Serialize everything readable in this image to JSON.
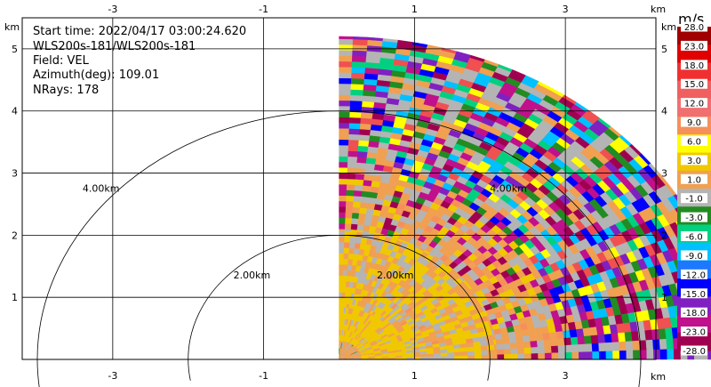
{
  "info_lines": [
    "Start time: 2022/04/17 03:00:24.620",
    "WLS200s-181/WLS200s-181",
    "Field: VEL",
    "Azimuth(deg): 109.01",
    "NRays: 178"
  ],
  "axis_unit": "km",
  "colorbar": {
    "unit": "m/s",
    "labels": [
      "28.0",
      "23.0",
      "18.0",
      "15.0",
      "12.0",
      "9.0",
      "6.0",
      "3.0",
      "1.0",
      "-1.0",
      "-3.0",
      "-6.0",
      "-9.0",
      "-12.0",
      "-15.0",
      "-18.0",
      "-23.0",
      "-28.0"
    ],
    "colors": [
      "#a00000",
      "#e00000",
      "#f03030",
      "#f06060",
      "#f07070",
      "#f5905a",
      "#ffff00",
      "#f0c800",
      "#f0a050",
      "#b4b4b4",
      "#228b22",
      "#00d080",
      "#00c0ff",
      "#1e78ff",
      "#0000ff",
      "#8020c0",
      "#c0108c",
      "#a00050"
    ]
  },
  "chart_data": {
    "type": "heatmap",
    "field": "VEL",
    "xlim": [
      -4.2,
      4.2
    ],
    "ylim": [
      0,
      5.5
    ],
    "x_ticks": [
      -3,
      -1,
      1,
      3
    ],
    "y_ticks": [
      1,
      2,
      3,
      4,
      5
    ],
    "max_range_km": 5.2,
    "range_rings": [
      {
        "radius_km": 2,
        "label": "2.00km"
      },
      {
        "radius_km": 4,
        "label": "4.00km"
      }
    ],
    "ring_label_positions": [
      {
        "label": "4.00km",
        "x": -3.4,
        "y": 2.7
      },
      {
        "label": "2.00km",
        "x": -1.4,
        "y": 1.3
      },
      {
        "label": "2.00km",
        "x": 0.5,
        "y": 1.3
      },
      {
        "label": "4.00km",
        "x": 2.0,
        "y": 2.7
      }
    ],
    "sector_deg": [
      0,
      90
    ],
    "layers": [
      {
        "r": [
          0.0,
          0.3
        ],
        "mix": [
          [
            0,
            "#f0a050"
          ],
          [
            0.75,
            "#b4b4b4"
          ],
          [
            0.95,
            "#228b22"
          ]
        ]
      },
      {
        "r": [
          0.3,
          0.9
        ],
        "mix": [
          [
            0,
            "#f0c800"
          ],
          [
            0.75,
            "#f0a050"
          ],
          [
            0.95,
            "#b4b4b4"
          ]
        ]
      },
      {
        "r": [
          0.9,
          2.1
        ],
        "mix": [
          [
            0,
            "#f0c800"
          ],
          [
            0.45,
            "#f0a050"
          ],
          [
            0.75,
            "#b4b4b4"
          ],
          [
            0.97,
            "#f5905a"
          ]
        ]
      },
      {
        "r": [
          2.1,
          3.0
        ],
        "mix": [
          [
            0,
            "#f0a050"
          ],
          [
            0.35,
            "#b4b4b4"
          ],
          [
            0.55,
            "#f0c800"
          ],
          [
            0.7,
            "#c0108c"
          ],
          [
            0.8,
            "#a00050"
          ],
          [
            0.88,
            "#f5905a"
          ],
          [
            0.95,
            "#228b22"
          ]
        ]
      },
      {
        "r": [
          3.0,
          5.2
        ],
        "mix": [
          [
            0,
            "#b4b4b4"
          ],
          [
            0.22,
            "#f0a050"
          ],
          [
            0.35,
            "#c0108c"
          ],
          [
            0.45,
            "#a00050"
          ],
          [
            0.53,
            "#228b22"
          ],
          [
            0.6,
            "#0000ff"
          ],
          [
            0.67,
            "#ffff00"
          ],
          [
            0.74,
            "#00d080"
          ],
          [
            0.8,
            "#f05050"
          ],
          [
            0.86,
            "#8020c0"
          ],
          [
            0.92,
            "#00c0ff"
          ]
        ]
      }
    ]
  }
}
